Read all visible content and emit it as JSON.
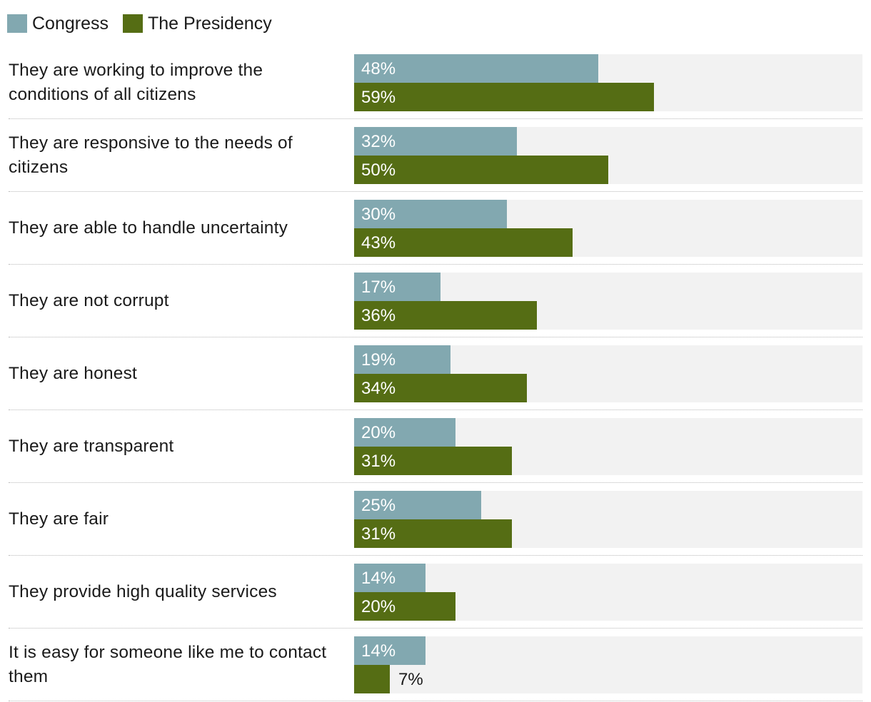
{
  "legend": {
    "congress_label": "Congress",
    "presidency_label": "The Presidency"
  },
  "colors": {
    "congress": "#82a8b0",
    "presidency": "#556d14",
    "track": "#f2f2f2"
  },
  "chart_data": {
    "type": "bar",
    "orientation": "horizontal",
    "title": "",
    "xlabel": "",
    "ylabel": "",
    "xlim": [
      0,
      100
    ],
    "grid": false,
    "legend_position": "top-left",
    "categories": [
      "They are working to improve the conditions of all citizens",
      "They are responsive to the needs of citizens",
      "They are able to handle uncertainty",
      "They are not corrupt",
      "They are honest",
      "They are transparent",
      "They are fair",
      "They provide high quality services",
      "It is easy for someone like me to contact them"
    ],
    "series": [
      {
        "name": "Congress",
        "values": [
          48,
          32,
          30,
          17,
          19,
          20,
          25,
          14,
          14
        ],
        "labels": [
          "48%",
          "32%",
          "30%",
          "17%",
          "19%",
          "20%",
          "25%",
          "14%",
          "14%"
        ]
      },
      {
        "name": "The Presidency",
        "values": [
          59,
          50,
          43,
          36,
          34,
          31,
          31,
          20,
          7
        ],
        "labels": [
          "59%",
          "50%",
          "43%",
          "36%",
          "34%",
          "31%",
          "31%",
          "20%",
          "7%"
        ]
      }
    ]
  }
}
